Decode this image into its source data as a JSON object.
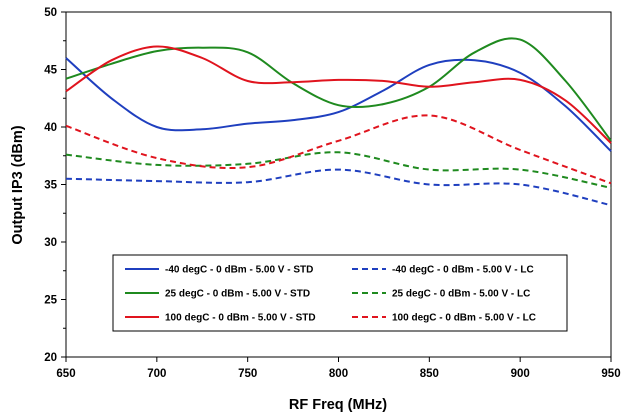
{
  "chart_data": {
    "type": "line",
    "title": "",
    "xlabel": "RF Freq (MHz)",
    "ylabel": "Output IP3 (dBm)",
    "xlim": [
      650,
      950
    ],
    "ylim": [
      20,
      50
    ],
    "xticks": [
      650,
      700,
      750,
      800,
      850,
      900,
      950
    ],
    "yticks": [
      20,
      25,
      30,
      35,
      40,
      45,
      50
    ],
    "grid": false,
    "legend_position": "bottom-center",
    "series": [
      {
        "name": "-40 degC - 0 dBm - 5.00 V - STD",
        "color": "#1f3fbf",
        "dash": "solid",
        "x": [
          650,
          675,
          700,
          725,
          750,
          775,
          800,
          825,
          850,
          875,
          900,
          925,
          950
        ],
        "y": [
          46.0,
          42.5,
          40.0,
          39.8,
          40.3,
          40.6,
          41.3,
          43.2,
          45.4,
          45.8,
          44.7,
          41.8,
          37.9
        ]
      },
      {
        "name": "-40 degC - 0 dBm - 5.00 V - LC",
        "color": "#1f3fbf",
        "dash": "dashed",
        "x": [
          650,
          700,
          750,
          800,
          850,
          900,
          950
        ],
        "y": [
          35.5,
          35.3,
          35.2,
          36.3,
          35.0,
          35.0,
          33.2
        ]
      },
      {
        "name": "25 degC - 0 dBm - 5.00 V - STD",
        "color": "#1f8a1f",
        "dash": "solid",
        "x": [
          650,
          675,
          700,
          725,
          750,
          775,
          800,
          825,
          850,
          875,
          900,
          925,
          950
        ],
        "y": [
          44.2,
          45.5,
          46.6,
          46.9,
          46.5,
          43.8,
          41.9,
          42.0,
          43.5,
          46.5,
          47.6,
          44.0,
          38.8
        ]
      },
      {
        "name": "25 degC - 0 dBm - 5.00 V - LC",
        "color": "#1f8a1f",
        "dash": "dashed",
        "x": [
          650,
          700,
          750,
          800,
          850,
          900,
          950
        ],
        "y": [
          37.6,
          36.7,
          36.8,
          37.8,
          36.3,
          36.3,
          34.7
        ]
      },
      {
        "name": "100 degC - 0 dBm - 5.00 V - STD",
        "color": "#e0141e",
        "dash": "solid",
        "x": [
          650,
          675,
          700,
          725,
          750,
          775,
          800,
          825,
          850,
          875,
          900,
          925,
          950
        ],
        "y": [
          43.1,
          45.8,
          47.0,
          46.0,
          44.0,
          43.9,
          44.1,
          44.0,
          43.5,
          43.9,
          44.1,
          42.3,
          38.6
        ]
      },
      {
        "name": "100 degC - 0 dBm - 5.00 V - LC",
        "color": "#e0141e",
        "dash": "dashed",
        "x": [
          650,
          700,
          750,
          800,
          850,
          900,
          950
        ],
        "y": [
          40.1,
          37.3,
          36.5,
          38.8,
          41.0,
          38.0,
          35.1
        ]
      }
    ]
  }
}
